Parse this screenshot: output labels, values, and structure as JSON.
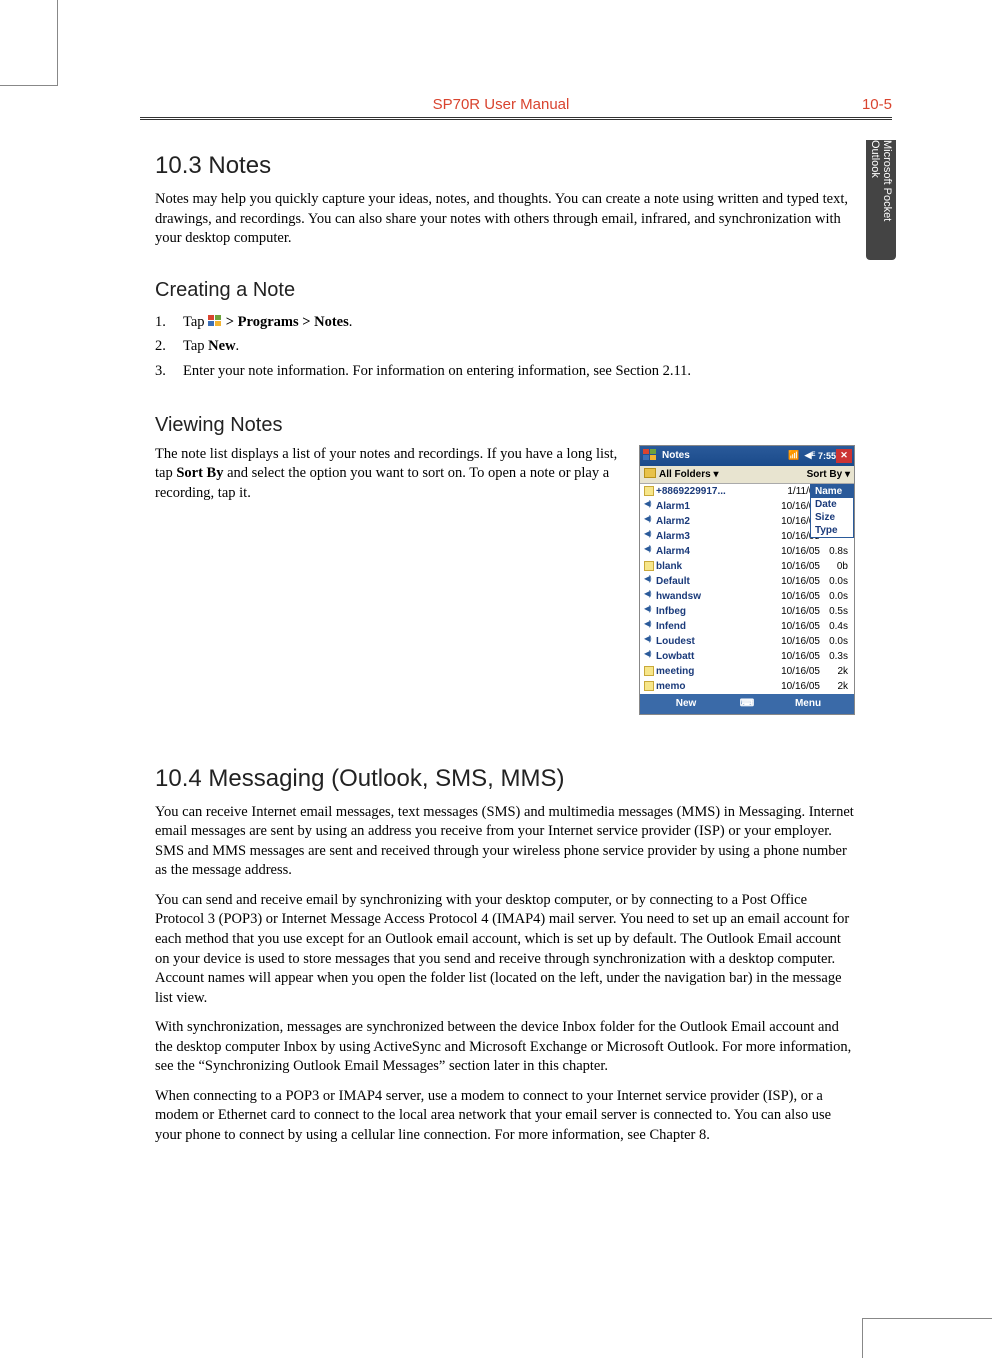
{
  "header": {
    "title": "SP70R User Manual",
    "page": "10-5"
  },
  "sideTab": "Microsoft Pocket Outlook",
  "s103": {
    "heading": "10.3    Notes",
    "intro": "Notes may help you quickly capture your ideas, notes, and thoughts. You can create a note using written and typed text, drawings, and recordings. You can also share your notes with others through email, infrared, and synchronization with your desktop computer.",
    "creating": {
      "heading": "Creating a Note",
      "step1a": "Tap ",
      "step1b": " > Programs > Notes",
      "step1c": ".",
      "step2a": "Tap ",
      "step2b": "New",
      "step2c": ".",
      "step3": "Enter your note information. For information on entering information, see Section 2.11."
    },
    "viewing": {
      "heading": "Viewing Notes",
      "para_a": "The note list displays a list of your notes and recordings. If you have a long list, tap ",
      "para_b": "Sort By",
      "para_c": " and select the option you want to sort on. To open a note or play a recording, tap it."
    }
  },
  "screenshot": {
    "title": "Notes",
    "time": "7:55",
    "folders": "All Folders ▾",
    "sortBy": "Sort By ▾",
    "sortMenu": [
      "Name",
      "Date",
      "Size",
      "Type"
    ],
    "rows": [
      {
        "ico": "note",
        "name": "+8869229917...",
        "date": "1/11/06",
        "size": ""
      },
      {
        "ico": "snd",
        "name": "Alarm1",
        "date": "10/16/05",
        "size": ""
      },
      {
        "ico": "snd",
        "name": "Alarm2",
        "date": "10/16/05",
        "size": ""
      },
      {
        "ico": "snd",
        "name": "Alarm3",
        "date": "10/16/05",
        "size": ""
      },
      {
        "ico": "snd",
        "name": "Alarm4",
        "date": "10/16/05",
        "size": "0.8s"
      },
      {
        "ico": "note",
        "name": "blank",
        "date": "10/16/05",
        "size": "0b"
      },
      {
        "ico": "snd",
        "name": "Default",
        "date": "10/16/05",
        "size": "0.0s"
      },
      {
        "ico": "snd",
        "name": "hwandsw",
        "date": "10/16/05",
        "size": "0.0s"
      },
      {
        "ico": "snd",
        "name": "Infbeg",
        "date": "10/16/05",
        "size": "0.5s"
      },
      {
        "ico": "snd",
        "name": "Infend",
        "date": "10/16/05",
        "size": "0.4s"
      },
      {
        "ico": "snd",
        "name": "Loudest",
        "date": "10/16/05",
        "size": "0.0s"
      },
      {
        "ico": "snd",
        "name": "Lowbatt",
        "date": "10/16/05",
        "size": "0.3s"
      },
      {
        "ico": "note",
        "name": "meeting",
        "date": "10/16/05",
        "size": "2k"
      },
      {
        "ico": "note",
        "name": "memo",
        "date": "10/16/05",
        "size": "2k"
      }
    ],
    "newLabel": "New",
    "menuLabel": "Menu"
  },
  "s104": {
    "heading": "10.4    Messaging (Outlook, SMS, MMS)",
    "p1": "You can receive Internet email messages, text messages (SMS) and multimedia messages (MMS) in Messaging. Internet email messages are sent by using an address you receive from your Internet service provider (ISP) or your employer. SMS and MMS messages are sent and received through your wireless phone service provider by using a phone number as the message address.",
    "p2": "You can send and receive email by synchronizing with your desktop computer, or by connecting to a Post Office Protocol 3 (POP3) or Internet Message Access Protocol 4 (IMAP4) mail server. You need to set up an email account for each method that you use except for an Outlook email account, which is set up by default. The Outlook Email account on your device is used to store messages that you send and receive through synchronization with a desktop computer. Account names will appear when you open the folder list (located on the left, under the navigation bar) in the message list view.",
    "p3": "With synchronization, messages are synchronized between the device Inbox folder for the Outlook Email account and the desktop computer Inbox by using ActiveSync and Microsoft Exchange or Microsoft Outlook. For more information, see the “Synchronizing Outlook Email Messages” section later in this chapter.",
    "p4": "When connecting to a POP3 or IMAP4 server, use a modem to connect to your Internet service provider (ISP), or a modem or Ethernet card to connect to the local area network that your email server is connected to. You can also use your phone to connect by using a cellular line connection. For more information, see Chapter 8."
  }
}
